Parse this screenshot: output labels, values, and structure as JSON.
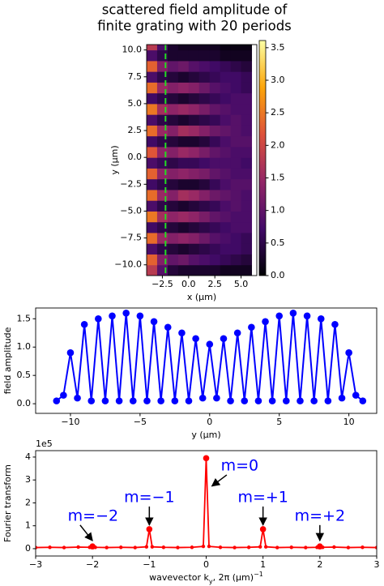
{
  "chart_data": [
    {
      "type": "heatmap",
      "title": [
        "scattered field amplitude of",
        "finite grating with 20 periods"
      ],
      "xlabel": "x (μm)",
      "ylabel": "y (μm)",
      "xlim": [
        -4,
        6.5
      ],
      "ylim": [
        -11,
        10.5
      ],
      "xticks": [
        {
          "value": -2.5,
          "label": "−2.5"
        },
        {
          "value": 0,
          "label": "0.0"
        },
        {
          "value": 2.5,
          "label": "2.5"
        },
        {
          "value": 5,
          "label": "5.0"
        }
      ],
      "yticks": [
        {
          "value": -10,
          "label": "−10.0"
        },
        {
          "value": -7.5,
          "label": "−7.5"
        },
        {
          "value": -5,
          "label": "−5.0"
        },
        {
          "value": -2.5,
          "label": "−2.5"
        },
        {
          "value": 0,
          "label": "0.0"
        },
        {
          "value": 2.5,
          "label": "2.5"
        },
        {
          "value": 5,
          "label": "5.0"
        },
        {
          "value": 7.5,
          "label": "7.5"
        },
        {
          "value": 10,
          "label": "10.0"
        }
      ],
      "x": [
        -3.5,
        -2.5,
        -1.5,
        -0.5,
        0.5,
        1.5,
        2.5,
        3.5,
        4.5,
        5.5
      ],
      "y": [
        -10.5,
        -9.5,
        -8.5,
        -7.5,
        -6.5,
        -5.5,
        -4.5,
        -3.5,
        -2.5,
        -1.5,
        -0.5,
        0.5,
        1.5,
        2.5,
        3.5,
        4.5,
        5.5,
        6.5,
        7.5,
        8.5,
        9.5,
        10.5
      ],
      "z": [
        [
          1.8,
          0.9,
          0.4,
          0.3,
          0.3,
          0.3,
          0.3,
          0.2,
          0.2,
          0.2
        ],
        [
          2.3,
          1.3,
          1.0,
          1.1,
          0.9,
          0.8,
          0.7,
          0.6,
          0.5,
          0.4
        ],
        [
          0.8,
          0.5,
          0.4,
          0.3,
          0.4,
          0.5,
          0.6,
          0.7,
          0.7,
          0.6
        ],
        [
          2.4,
          1.5,
          1.3,
          1.4,
          1.3,
          1.1,
          0.9,
          0.8,
          0.7,
          0.6
        ],
        [
          0.7,
          0.5,
          0.4,
          0.3,
          0.4,
          0.5,
          0.6,
          0.7,
          0.8,
          0.8
        ],
        [
          2.5,
          1.6,
          1.4,
          1.5,
          1.4,
          1.2,
          1.0,
          0.9,
          0.8,
          0.8
        ],
        [
          0.8,
          0.5,
          0.4,
          0.3,
          0.4,
          0.5,
          0.6,
          0.8,
          0.9,
          0.8
        ],
        [
          2.4,
          1.5,
          1.3,
          1.6,
          1.5,
          1.3,
          1.1,
          1.0,
          0.9,
          0.8
        ],
        [
          0.7,
          0.5,
          0.4,
          0.3,
          0.3,
          0.4,
          0.6,
          0.8,
          0.9,
          0.9
        ],
        [
          2.3,
          1.4,
          1.3,
          1.4,
          1.3,
          1.2,
          1.0,
          0.9,
          0.8,
          0.8
        ],
        [
          0.8,
          0.6,
          0.5,
          0.6,
          0.6,
          0.7,
          0.8,
          0.8,
          0.8,
          0.7
        ],
        [
          2.2,
          1.4,
          1.3,
          1.5,
          1.4,
          1.2,
          1.0,
          0.9,
          0.8,
          0.8
        ],
        [
          0.7,
          0.5,
          0.4,
          0.3,
          0.3,
          0.4,
          0.6,
          0.8,
          0.9,
          0.9
        ],
        [
          2.4,
          1.5,
          1.3,
          1.6,
          1.5,
          1.3,
          1.1,
          1.0,
          0.9,
          0.8
        ],
        [
          0.8,
          0.5,
          0.4,
          0.3,
          0.4,
          0.5,
          0.6,
          0.8,
          0.9,
          0.8
        ],
        [
          2.5,
          1.6,
          1.4,
          1.5,
          1.4,
          1.2,
          1.0,
          0.9,
          0.8,
          0.8
        ],
        [
          0.7,
          0.5,
          0.4,
          0.3,
          0.4,
          0.5,
          0.6,
          0.7,
          0.8,
          0.8
        ],
        [
          2.4,
          1.5,
          1.3,
          1.4,
          1.3,
          1.1,
          0.9,
          0.8,
          0.7,
          0.6
        ],
        [
          0.8,
          0.5,
          0.4,
          0.3,
          0.4,
          0.5,
          0.6,
          0.7,
          0.7,
          0.6
        ],
        [
          2.3,
          1.3,
          1.0,
          1.1,
          0.9,
          0.8,
          0.7,
          0.6,
          0.5,
          0.4
        ],
        [
          0.8,
          0.5,
          0.3,
          0.3,
          0.3,
          0.3,
          0.3,
          0.2,
          0.2,
          0.2
        ],
        [
          1.8,
          0.8,
          0.3,
          0.2,
          0.2,
          0.2,
          0.2,
          0.1,
          0.1,
          0.1
        ]
      ],
      "colormap": [
        "#000004",
        "#420a68",
        "#932667",
        "#dd513a",
        "#fca50a",
        "#fcffa4"
      ],
      "clim": [
        0,
        3.61
      ],
      "cticks": [
        {
          "value": 0,
          "label": "0.0"
        },
        {
          "value": 0.5,
          "label": "0.5"
        },
        {
          "value": 1,
          "label": "1.0"
        },
        {
          "value": 1.5,
          "label": "1.5"
        },
        {
          "value": 2,
          "label": "2.0"
        },
        {
          "value": 2.5,
          "label": "2.5"
        },
        {
          "value": 3,
          "label": "3.0"
        },
        {
          "value": 3.5,
          "label": "3.5"
        }
      ],
      "vline": {
        "x": -2.2,
        "color": "#22dd22"
      }
    },
    {
      "type": "line",
      "xlabel": "y (μm)",
      "ylabel": "field amplitude",
      "xlim": [
        -12.5,
        12
      ],
      "ylim": [
        -0.17,
        1.69
      ],
      "xticks": [
        {
          "value": -10,
          "label": "−10"
        },
        {
          "value": -5,
          "label": "−5"
        },
        0,
        5,
        10
      ],
      "yticks": [
        {
          "value": 0,
          "label": "0.0"
        },
        {
          "value": 0.5,
          "label": "0.5"
        },
        {
          "value": 1,
          "label": "1.0"
        },
        {
          "value": 1.5,
          "label": "1.5"
        }
      ],
      "series": [
        {
          "color": "#0000ff",
          "x": [
            -11,
            -10.5,
            -10,
            -9.5,
            -9,
            -8.5,
            -8,
            -7.5,
            -7,
            -6.5,
            -6,
            -5.5,
            -5,
            -4.5,
            -4,
            -3.5,
            -3,
            -2.5,
            -2,
            -1.5,
            -1,
            -0.5,
            0,
            0.5,
            1,
            1.5,
            2,
            2.5,
            3,
            3.5,
            4,
            4.5,
            5,
            5.5,
            6,
            6.5,
            7,
            7.5,
            8,
            8.5,
            9,
            9.5,
            10,
            10.5,
            11
          ],
          "values": [
            0.05,
            0.15,
            0.9,
            0.1,
            1.4,
            0.05,
            1.5,
            0.05,
            1.55,
            0.05,
            1.6,
            0.05,
            1.55,
            0.05,
            1.45,
            0.05,
            1.35,
            0.05,
            1.25,
            0.05,
            1.15,
            0.1,
            1.05,
            0.1,
            1.15,
            0.05,
            1.25,
            0.05,
            1.35,
            0.05,
            1.45,
            0.05,
            1.55,
            0.05,
            1.6,
            0.05,
            1.55,
            0.05,
            1.5,
            0.05,
            1.4,
            0.1,
            0.9,
            0.15,
            0.05
          ]
        }
      ]
    },
    {
      "type": "line",
      "xlabel": [
        "wavevector k",
        "y",
        ", 2π (μm)",
        "−1"
      ],
      "ylabel": "Fourier transform",
      "y_offset_label": "1e5",
      "xlim": [
        -3,
        3
      ],
      "ylim": [
        -0.32,
        4.28
      ],
      "xticks": [
        {
          "value": -3,
          "label": "−3"
        },
        {
          "value": -2,
          "label": "−2"
        },
        {
          "value": -1,
          "label": "−1"
        },
        0,
        1,
        2,
        3
      ],
      "yticks": [
        0,
        1,
        2,
        3,
        4
      ],
      "series": [
        {
          "color": "#ff0000",
          "x": [
            -3,
            -2.75,
            -2.5,
            -2.25,
            -2.05,
            -2,
            -1.95,
            -1.75,
            -1.5,
            -1.25,
            -1.05,
            -1,
            -0.95,
            -0.75,
            -0.5,
            -0.25,
            -0.05,
            0,
            0.05,
            0.25,
            0.5,
            0.75,
            0.95,
            1,
            1.05,
            1.25,
            1.5,
            1.75,
            1.95,
            2,
            2.05,
            2.25,
            2.5,
            2.75,
            3
          ],
          "values": [
            0.05,
            0.06,
            0.05,
            0.07,
            0.06,
            0.1,
            0.06,
            0.05,
            0.06,
            0.05,
            0.08,
            0.85,
            0.08,
            0.06,
            0.05,
            0.06,
            0.1,
            3.95,
            0.1,
            0.06,
            0.05,
            0.06,
            0.08,
            0.85,
            0.08,
            0.05,
            0.06,
            0.05,
            0.06,
            0.1,
            0.06,
            0.07,
            0.05,
            0.06,
            0.05
          ]
        },
        {
          "color": "#ff0000",
          "x": [
            -2,
            -1,
            0,
            1,
            2
          ],
          "values": [
            0.1,
            0.85,
            3.95,
            0.85,
            0.1
          ]
        }
      ],
      "annotation_color": "#0000ff",
      "annotations": [
        {
          "text": "m=−2",
          "xy": [
            -2,
            0.35
          ],
          "xytext": [
            -1.99,
            1.42
          ]
        },
        {
          "text": "m=−1",
          "xy": [
            -1,
            1.03
          ],
          "xytext": [
            -1,
            2.23
          ]
        },
        {
          "text": "m=0",
          "xy": [
            0.1,
            2.73
          ],
          "xytext": [
            0.59,
            3.61
          ]
        },
        {
          "text": "m=+1",
          "xy": [
            1,
            1.03
          ],
          "xytext": [
            1,
            2.23
          ]
        },
        {
          "text": "m=+2",
          "xy": [
            2,
            0.35
          ],
          "xytext": [
            2,
            1.42
          ]
        }
      ]
    }
  ]
}
